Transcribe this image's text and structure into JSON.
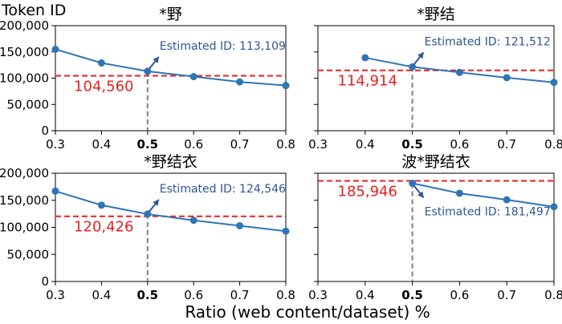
{
  "figure": {
    "ylabel": "Token ID",
    "xlabel": "Ratio (web content/dataset) %"
  },
  "chart_data": [
    {
      "type": "line",
      "title": "*野",
      "x": [
        0.3,
        0.4,
        0.5,
        0.6,
        0.7,
        0.8
      ],
      "values": [
        155000,
        129000,
        113109,
        103000,
        93000,
        86000
      ],
      "threshold": 104560,
      "threshold_label": "104,560",
      "highlight_x": 0.5,
      "annotation": "Estimated ID: 113,109",
      "annotation_position": "above-right",
      "xticks": [
        "0.3",
        "0.4",
        "0.5",
        "0.6",
        "0.7",
        "0.8"
      ],
      "yticks": [
        "0",
        "50,000",
        "100,000",
        "150,000",
        "200,000"
      ],
      "xlim": [
        0.3,
        0.8
      ],
      "ylim": [
        0,
        200000
      ]
    },
    {
      "type": "line",
      "title": "*野结",
      "x": [
        0.4,
        0.5,
        0.6,
        0.7,
        0.8
      ],
      "values": [
        139000,
        121512,
        111000,
        101000,
        92000
      ],
      "threshold": 114914,
      "threshold_label": "114,914",
      "highlight_x": 0.5,
      "annotation": "Estimated ID: 121,512",
      "annotation_position": "above-right",
      "xticks": [
        "0.3",
        "0.4",
        "0.5",
        "0.6",
        "0.7",
        "0.8"
      ],
      "yticks": [],
      "xlim": [
        0.3,
        0.8
      ],
      "ylim": [
        0,
        200000
      ]
    },
    {
      "type": "line",
      "title": "*野结衣",
      "x": [
        0.3,
        0.4,
        0.5,
        0.6,
        0.7,
        0.8
      ],
      "values": [
        167000,
        141000,
        124546,
        113000,
        103000,
        93000
      ],
      "threshold": 120426,
      "threshold_label": "120,426",
      "highlight_x": 0.5,
      "annotation": "Estimated ID: 124,546",
      "annotation_position": "above-right",
      "xticks": [
        "0.3",
        "0.4",
        "0.5",
        "0.6",
        "0.7",
        "0.8"
      ],
      "yticks": [
        "0",
        "50,000",
        "100,000",
        "150,000",
        "200,000"
      ],
      "xlim": [
        0.3,
        0.8
      ],
      "ylim": [
        0,
        200000
      ]
    },
    {
      "type": "line",
      "title": "波*野结衣",
      "x": [
        0.5,
        0.6,
        0.7,
        0.8
      ],
      "values": [
        181497,
        163000,
        151000,
        138000
      ],
      "threshold": 185946,
      "threshold_label": "185,946",
      "highlight_x": 0.5,
      "annotation": "Estimated ID: 181,497",
      "annotation_position": "below-right",
      "xticks": [
        "0.3",
        "0.4",
        "0.5",
        "0.6",
        "0.7",
        "0.8"
      ],
      "yticks": [],
      "xlim": [
        0.3,
        0.8
      ],
      "ylim": [
        0,
        200000
      ]
    }
  ],
  "colors": {
    "line": "#2e75b6",
    "marker": "#2e75b6",
    "threshold": "#e8201f",
    "threshold_text": "#e8201f",
    "annotation": "#2f5597",
    "highlight_line": "#7f7f7f",
    "axis": "#000000"
  }
}
